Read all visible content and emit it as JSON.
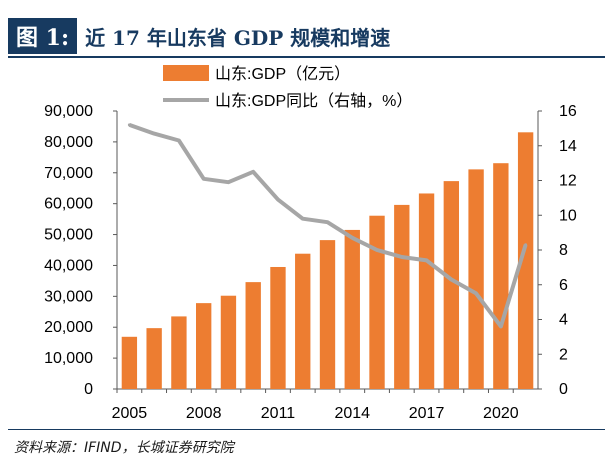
{
  "header": {
    "label": "图 1:",
    "title": "近 17 年山东省 GDP 规模和增速"
  },
  "source": "资料来源：IFIND，长城证券研究院",
  "chart_data": {
    "type": "bar+line",
    "x": [
      2005,
      2006,
      2007,
      2008,
      2009,
      2010,
      2011,
      2012,
      2013,
      2014,
      2015,
      2016,
      2017,
      2018,
      2019,
      2020,
      2021
    ],
    "x_tick_labels": [
      "2005",
      "2008",
      "2011",
      "2014",
      "2017",
      "2020"
    ],
    "series": [
      {
        "name": "山东:GDP（亿元）",
        "type": "bar",
        "axis": "left",
        "color": "#ed7d31",
        "values": [
          16900,
          19700,
          23500,
          27800,
          30200,
          34600,
          39500,
          43800,
          48200,
          51500,
          56100,
          59600,
          63300,
          67300,
          71100,
          73100,
          83100
        ]
      },
      {
        "name": "山东:GDP同比（右轴，%）",
        "type": "line",
        "axis": "right",
        "color": "#a6a6a6",
        "values": [
          15.2,
          14.7,
          14.3,
          12.1,
          11.9,
          12.5,
          10.9,
          9.8,
          9.6,
          8.7,
          8.0,
          7.6,
          7.4,
          6.3,
          5.5,
          3.6,
          8.3
        ]
      }
    ],
    "y_left": {
      "min": 0,
      "max": 90000,
      "ticks": [
        "0",
        "10,000",
        "20,000",
        "30,000",
        "40,000",
        "50,000",
        "60,000",
        "70,000",
        "80,000",
        "90,000"
      ]
    },
    "y_right": {
      "min": 0,
      "max": 16,
      "ticks": [
        "0",
        "2",
        "4",
        "6",
        "8",
        "10",
        "12",
        "14",
        "16"
      ]
    },
    "legend_position": "top",
    "grid": false
  }
}
